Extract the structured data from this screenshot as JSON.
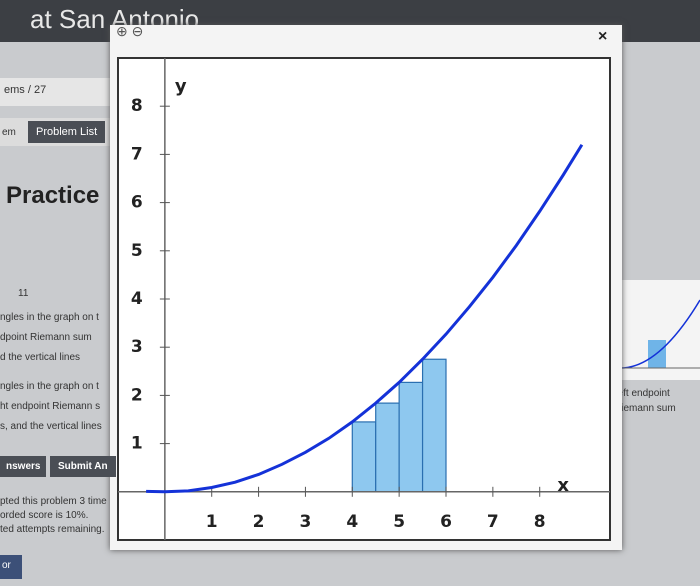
{
  "header": {
    "title": "at San Antonio"
  },
  "nav": {
    "counter": "ems / 27",
    "tab": "em",
    "problem_list": "Problem List"
  },
  "content": {
    "heading": "Practice",
    "formula": "11",
    "lines": [
      "ngles in the graph on t",
      "dpoint Riemann sum",
      "d the vertical lines",
      "ngles in the graph on t",
      "ht endpoint Riemann s",
      "s, and the vertical lines"
    ],
    "buttons": [
      "nswers",
      "Submit An"
    ],
    "notes": [
      "pted this problem 3 time",
      "orded score is 10%.",
      "ted attempts remaining."
    ],
    "footer": "or"
  },
  "thumbnail": {
    "caption": [
      "Left endpoint",
      "Riemann sum"
    ]
  },
  "popup": {
    "close": "×"
  },
  "chart_data": {
    "type": "riemann",
    "xlabel": "x",
    "ylabel": "y",
    "xlim": [
      -1,
      9.5
    ],
    "ylim": [
      -1,
      9
    ],
    "xticks": [
      1,
      2,
      3,
      4,
      5,
      6,
      7,
      8
    ],
    "yticks": [
      1,
      2,
      3,
      4,
      5,
      6,
      7,
      8
    ],
    "curve": {
      "color": "#1432d8",
      "x": [
        -0.4,
        0,
        0.5,
        1,
        1.5,
        2,
        2.5,
        3,
        3.5,
        4,
        4.5,
        5,
        5.5,
        6,
        6.5,
        7,
        7.5,
        8,
        8.5,
        8.9
      ],
      "values": [
        0.01,
        0,
        0.02,
        0.09,
        0.2,
        0.36,
        0.57,
        0.82,
        1.11,
        1.45,
        1.84,
        2.27,
        2.75,
        3.27,
        3.84,
        4.45,
        5.11,
        5.82,
        6.57,
        7.2
      ]
    },
    "rectangles": {
      "color": "#8ec8ef",
      "width": 0.5,
      "x": [
        4,
        4.5,
        5,
        5.5
      ],
      "values": [
        1.45,
        1.84,
        2.27,
        2.75
      ]
    }
  }
}
